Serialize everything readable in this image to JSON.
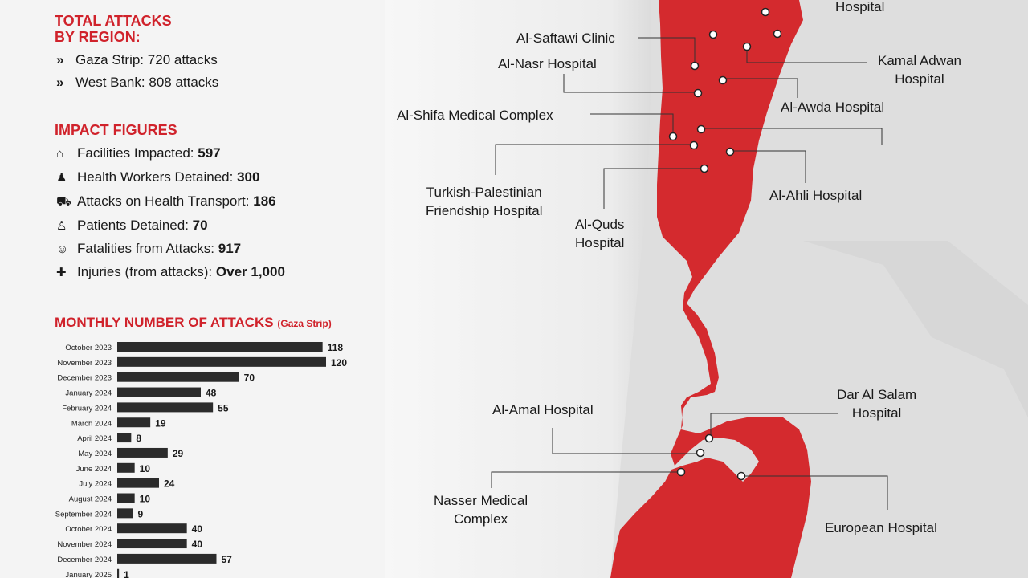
{
  "region": {
    "title_line1": "TOTAL ATTACKS",
    "title_line2": "BY REGION:",
    "items": [
      {
        "label": "Gaza Strip:",
        "value": "720 attacks"
      },
      {
        "label": "West Bank:",
        "value": "808 attacks"
      }
    ]
  },
  "impact": {
    "title": "IMPACT FIGURES",
    "items": [
      {
        "icon": "hospital-icon",
        "label": "Facilities Impacted:",
        "value": "597"
      },
      {
        "icon": "worker-icon",
        "label": "Health Workers Detained:",
        "value": "300"
      },
      {
        "icon": "ambulance-icon",
        "label": "Attacks on Health Transport:",
        "value": "186"
      },
      {
        "icon": "patient-icon",
        "label": "Patients Detained:",
        "value": "70"
      },
      {
        "icon": "people-icon",
        "label": "Fatalities from Attacks:",
        "value": "917"
      },
      {
        "icon": "bandage-icon",
        "label": "Injuries (from attacks):",
        "value": "Over 1,000"
      }
    ]
  },
  "chart_data": {
    "type": "bar",
    "title": "MONTHLY NUMBER OF ATTACKS",
    "subtitle": "(Gaza Strip)",
    "orientation": "horizontal",
    "categories": [
      "October 2023",
      "November 2023",
      "December 2023",
      "January 2024",
      "February 2024",
      "March 2024",
      "April 2024",
      "May 2024",
      "June 2024",
      "July 2024",
      "August 2024",
      "September 2024",
      "October 2024",
      "November 2024",
      "December 2024",
      "January 2025"
    ],
    "values": [
      118,
      120,
      70,
      48,
      55,
      19,
      8,
      29,
      10,
      24,
      10,
      9,
      40,
      40,
      57,
      1
    ],
    "color": "#2b2b2b"
  },
  "map": {
    "labels": [
      {
        "id": "hospital-top",
        "text": "Hospital"
      },
      {
        "id": "al-saftawi",
        "text": "Al-Saftawi Clinic"
      },
      {
        "id": "al-nasr",
        "text": "Al-Nasr Hospital"
      },
      {
        "id": "kamal-adwan",
        "text": "Kamal Adwan\nHospital"
      },
      {
        "id": "al-awda",
        "text": "Al-Awda Hospital"
      },
      {
        "id": "al-shifa",
        "text": "Al-Shifa Medical Complex"
      },
      {
        "id": "turkish",
        "text": "Turkish-Palestinian\nFriendship Hospital"
      },
      {
        "id": "al-ahli",
        "text": "Al-Ahli Hospital"
      },
      {
        "id": "al-quds",
        "text": "Al-Quds\nHospital"
      },
      {
        "id": "al-amal",
        "text": "Al-Amal Hospital"
      },
      {
        "id": "dar-al-salam",
        "text": "Dar Al Salam\nHospital"
      },
      {
        "id": "nasser",
        "text": "Nasser Medical\nComplex"
      },
      {
        "id": "european",
        "text": "European Hospital"
      }
    ],
    "territory_color": "#d42a2e"
  }
}
